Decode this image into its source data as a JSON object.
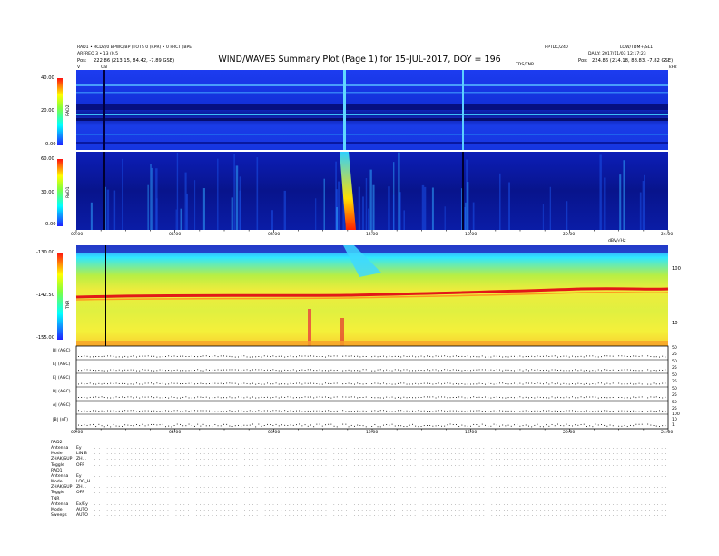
{
  "header": {
    "title": "WIND/WAVES Summary Plot (Page 1) for 15-JUL-2017, DOY = 196",
    "top_left_1": "RAD1 • RCD2/0 BPWO/BP (TOTS 0 (RPR) • 0 PRCT (BPE",
    "top_left_2": "ARFREQ 3 • 13 (0.5",
    "top_right_1": "LOW/TDM+/SL1",
    "top_center_right": "RPTDC/240",
    "top_right_2": "DAILY: 2017/11/03 12:17:23",
    "pos_left_label": "Pos:",
    "pos_left": "222.86 (213.15, 84.42, -7.89 GSE)",
    "pos_right_label": "Pos:",
    "pos_right": "224.86 (214.18, 88.83, -7.82 GSE)",
    "near_title_right": "TDS/TNR",
    "cal_label": "Cal",
    "corner_left": "V",
    "corner_right": "kHz"
  },
  "spectrograms": [
    {
      "name": "RAD2",
      "ticks": [
        "40.00",
        "20.00",
        "0.00"
      ]
    },
    {
      "name": "RAD1",
      "ticks": [
        "60.00",
        "30.00",
        "0.00"
      ]
    },
    {
      "name": "TNR",
      "ticks": [
        "-130.00",
        "-142.50",
        "-155.00"
      ],
      "right_ticks": [
        "100",
        "10"
      ],
      "right_header": "dBV/√Hz"
    }
  ],
  "time_axis": {
    "labels": [
      "00:00",
      "04:00",
      "08:00",
      "12:00",
      "16:00",
      "20:00",
      "24:00"
    ],
    "labels_lower": [
      "00:00",
      "04:00",
      "08:00",
      "12:00",
      "16:00",
      "20:00",
      "24:00"
    ]
  },
  "line_panels": [
    {
      "label": "B| (AGC)",
      "ticks": [
        "50",
        "25"
      ]
    },
    {
      "label": "E| (AGC)",
      "ticks": [
        "50",
        "25"
      ]
    },
    {
      "label": "E| (AGC)",
      "ticks": [
        "50",
        "25"
      ]
    },
    {
      "label": "B| (AGC)",
      "ticks": [
        "50",
        "25"
      ]
    },
    {
      "label": "A| (AGC)",
      "ticks": [
        "50",
        "25"
      ]
    },
    {
      "label": "|B| (nT)",
      "ticks": [
        "100",
        "10",
        "1"
      ]
    }
  ],
  "status": {
    "rad2_title": "RAD2",
    "rad1_title": "RAD1",
    "tnr_title": "TNR",
    "rows": [
      {
        "k": "Antenna",
        "v": "Ey"
      },
      {
        "k": "Mode",
        "v": "LIN B"
      },
      {
        "k": "ZHAK/SUP",
        "v": "ZH..."
      },
      {
        "k": "Toggle",
        "v": "OFF"
      },
      {
        "k": "Antenna",
        "v": "Ey"
      },
      {
        "k": "Mode",
        "v": "LOG_H"
      },
      {
        "k": "ZHAK/SUP",
        "v": "ZH..."
      },
      {
        "k": "Toggle",
        "v": "OFF"
      },
      {
        "k": "Antenna",
        "v": "Ex/Ey"
      },
      {
        "k": "Mode",
        "v": "AUTO"
      },
      {
        "k": "Sweeps",
        "v": "AUTO"
      }
    ]
  },
  "chart_data": [
    {
      "type": "heatmap",
      "title": "RAD2",
      "ylim": [
        0,
        40
      ],
      "x_range": [
        "00:00",
        "24:00"
      ],
      "features": [
        {
          "kind": "type III burst",
          "time": "11:00",
          "intensity": "high"
        },
        {
          "kind": "vertical stripe",
          "time": "16:20",
          "intensity": "medium"
        }
      ]
    },
    {
      "type": "heatmap",
      "title": "RAD1",
      "ylim": [
        0,
        60
      ],
      "x_range": [
        "00:00",
        "24:00"
      ],
      "features": [
        {
          "kind": "type III burst",
          "time": "11:00",
          "intensity": "very high"
        }
      ]
    },
    {
      "type": "heatmap",
      "title": "TNR",
      "ylim": [
        -155,
        -130
      ],
      "x_range": [
        "00:00",
        "24:00"
      ],
      "plasma_line_level": -142.5
    }
  ],
  "colors": {
    "spectro_dark": "#00008a",
    "spectro_blue": "#1f3fff",
    "spectro_cyan": "#2fe0ff",
    "tnr_yellow": "#f4ee3a",
    "tnr_green": "#a8e35a",
    "tnr_red": "#e21818"
  }
}
